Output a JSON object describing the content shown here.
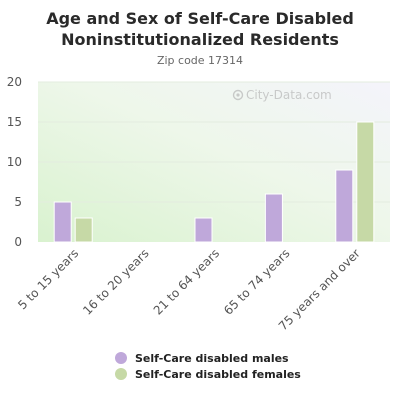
{
  "chart_data": {
    "type": "bar",
    "title": "Age and Sex of Self-Care Disabled Noninstitutionalized Residents",
    "title_lines": [
      "Age and Sex of Self-Care Disabled",
      "Noninstitutionalized Residents"
    ],
    "subtitle": "Zip code 17314",
    "watermark": "City-Data.com",
    "categories": [
      "5 to 15 years",
      "16 to 20 years",
      "21 to 64 years",
      "65 to 74 years",
      "75 years and over"
    ],
    "series": [
      {
        "name": "Self-Care disabled males",
        "color": "#bfa8da",
        "values": [
          5,
          0,
          3,
          6,
          9
        ]
      },
      {
        "name": "Self-Care disabled females",
        "color": "#c6d9a6",
        "values": [
          3,
          0,
          0,
          0,
          15
        ]
      }
    ],
    "ylim": [
      0,
      20
    ],
    "yticks": [
      0,
      5,
      10,
      15,
      20
    ],
    "grid": true,
    "legend_position": "bottom"
  }
}
